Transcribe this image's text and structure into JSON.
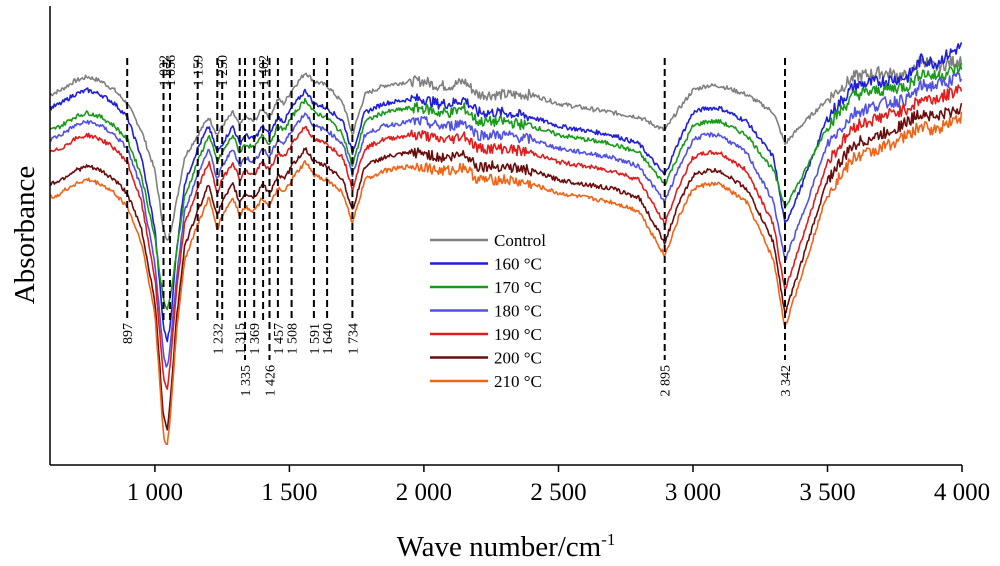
{
  "chart_data": {
    "type": "line",
    "title": "",
    "xlabel": "Wave number/cm",
    "xlabel_sup": "-1",
    "ylabel": "Absorbance",
    "xlim": [
      610,
      4000
    ],
    "ylim": [
      0,
      1
    ],
    "y_ticks_shown": false,
    "grid": false,
    "legend_position": "center",
    "x_ticks": [
      {
        "value": 1000,
        "label": "1 000"
      },
      {
        "value": 1500,
        "label": "1 500"
      },
      {
        "value": 2000,
        "label": "2 000"
      },
      {
        "value": 2500,
        "label": "2 500"
      },
      {
        "value": 3000,
        "label": "3 000"
      },
      {
        "value": 3500,
        "label": "3 500"
      },
      {
        "value": 4000,
        "label": "4 000"
      }
    ],
    "series": [
      {
        "name": "Control",
        "color": "#808080",
        "x": [
          610,
          650,
          700,
          750,
          800,
          850,
          897,
          950,
          1000,
          1032,
          1045,
          1056,
          1080,
          1110,
          1159,
          1200,
          1232,
          1250,
          1290,
          1315,
          1335,
          1369,
          1400,
          1426,
          1457,
          1480,
          1508,
          1560,
          1591,
          1640,
          1700,
          1734,
          1780,
          1850,
          1950,
          2000,
          2050,
          2100,
          2150,
          2200,
          2300,
          2400,
          2500,
          2600,
          2700,
          2800,
          2895,
          2950,
          3000,
          3050,
          3100,
          3200,
          3300,
          3342,
          3400,
          3500,
          3600,
          3700,
          3800,
          3850,
          3900,
          3950,
          4000
        ],
        "y": [
          0.82,
          0.83,
          0.85,
          0.86,
          0.85,
          0.83,
          0.8,
          0.74,
          0.65,
          0.52,
          0.49,
          0.51,
          0.58,
          0.68,
          0.73,
          0.77,
          0.73,
          0.75,
          0.78,
          0.75,
          0.77,
          0.76,
          0.79,
          0.77,
          0.81,
          0.8,
          0.83,
          0.87,
          0.85,
          0.84,
          0.8,
          0.73,
          0.82,
          0.84,
          0.85,
          0.85,
          0.84,
          0.84,
          0.85,
          0.82,
          0.82,
          0.82,
          0.8,
          0.79,
          0.78,
          0.77,
          0.74,
          0.79,
          0.83,
          0.84,
          0.84,
          0.82,
          0.78,
          0.71,
          0.75,
          0.81,
          0.86,
          0.87,
          0.86,
          0.9,
          0.88,
          0.89,
          0.9
        ]
      },
      {
        "name": "160 °C",
        "color": "#1f1fd6",
        "x": [
          610,
          650,
          700,
          750,
          800,
          850,
          897,
          950,
          1000,
          1032,
          1045,
          1056,
          1080,
          1110,
          1159,
          1200,
          1232,
          1250,
          1290,
          1315,
          1335,
          1369,
          1400,
          1426,
          1457,
          1480,
          1508,
          1560,
          1591,
          1640,
          1700,
          1734,
          1780,
          1850,
          1950,
          2000,
          2050,
          2100,
          2150,
          2200,
          2300,
          2400,
          2500,
          2600,
          2700,
          2800,
          2895,
          2950,
          3000,
          3050,
          3100,
          3200,
          3300,
          3342,
          3400,
          3500,
          3600,
          3700,
          3800,
          3850,
          3900,
          3950,
          4000
        ],
        "y": [
          0.79,
          0.8,
          0.82,
          0.83,
          0.82,
          0.8,
          0.77,
          0.68,
          0.52,
          0.3,
          0.27,
          0.3,
          0.47,
          0.62,
          0.7,
          0.75,
          0.69,
          0.71,
          0.75,
          0.71,
          0.73,
          0.72,
          0.75,
          0.73,
          0.77,
          0.76,
          0.79,
          0.83,
          0.8,
          0.79,
          0.76,
          0.69,
          0.78,
          0.8,
          0.81,
          0.81,
          0.8,
          0.8,
          0.81,
          0.78,
          0.78,
          0.77,
          0.75,
          0.74,
          0.73,
          0.71,
          0.64,
          0.72,
          0.78,
          0.79,
          0.79,
          0.76,
          0.68,
          0.53,
          0.61,
          0.77,
          0.84,
          0.85,
          0.86,
          0.9,
          0.89,
          0.91,
          0.93
        ]
      },
      {
        "name": "170 °C",
        "color": "#1a9a1a",
        "x": [
          610,
          650,
          700,
          750,
          800,
          850,
          897,
          950,
          1000,
          1032,
          1045,
          1056,
          1080,
          1110,
          1159,
          1200,
          1232,
          1250,
          1290,
          1315,
          1335,
          1369,
          1400,
          1426,
          1457,
          1480,
          1508,
          1560,
          1591,
          1640,
          1700,
          1734,
          1780,
          1850,
          1950,
          2000,
          2050,
          2100,
          2150,
          2200,
          2300,
          2400,
          2500,
          2600,
          2700,
          2800,
          2895,
          2950,
          3000,
          3050,
          3100,
          3200,
          3300,
          3342,
          3400,
          3500,
          3600,
          3700,
          3800,
          3850,
          3900,
          3950,
          4000
        ],
        "y": [
          0.74,
          0.75,
          0.77,
          0.78,
          0.77,
          0.75,
          0.72,
          0.64,
          0.5,
          0.36,
          0.34,
          0.36,
          0.47,
          0.59,
          0.67,
          0.73,
          0.67,
          0.69,
          0.73,
          0.69,
          0.71,
          0.7,
          0.73,
          0.71,
          0.75,
          0.74,
          0.77,
          0.81,
          0.78,
          0.77,
          0.73,
          0.66,
          0.76,
          0.78,
          0.79,
          0.79,
          0.78,
          0.78,
          0.79,
          0.76,
          0.76,
          0.75,
          0.73,
          0.72,
          0.71,
          0.69,
          0.62,
          0.69,
          0.75,
          0.76,
          0.76,
          0.73,
          0.65,
          0.57,
          0.63,
          0.75,
          0.82,
          0.83,
          0.84,
          0.87,
          0.86,
          0.87,
          0.88
        ]
      },
      {
        "name": "180 °C",
        "color": "#5252e0",
        "x": [
          610,
          650,
          700,
          750,
          800,
          850,
          897,
          950,
          1000,
          1032,
          1045,
          1056,
          1080,
          1110,
          1159,
          1200,
          1232,
          1250,
          1290,
          1315,
          1335,
          1369,
          1400,
          1426,
          1457,
          1480,
          1508,
          1560,
          1591,
          1640,
          1700,
          1734,
          1780,
          1850,
          1950,
          2000,
          2050,
          2100,
          2150,
          2200,
          2300,
          2400,
          2500,
          2600,
          2700,
          2800,
          2895,
          2950,
          3000,
          3050,
          3100,
          3200,
          3300,
          3342,
          3400,
          3500,
          3600,
          3700,
          3800,
          3850,
          3900,
          3950,
          4000
        ],
        "y": [
          0.72,
          0.73,
          0.75,
          0.76,
          0.75,
          0.73,
          0.7,
          0.61,
          0.44,
          0.24,
          0.21,
          0.25,
          0.41,
          0.56,
          0.64,
          0.7,
          0.63,
          0.66,
          0.7,
          0.66,
          0.68,
          0.67,
          0.7,
          0.68,
          0.72,
          0.71,
          0.74,
          0.78,
          0.75,
          0.74,
          0.71,
          0.64,
          0.73,
          0.75,
          0.76,
          0.76,
          0.75,
          0.75,
          0.76,
          0.73,
          0.73,
          0.72,
          0.7,
          0.69,
          0.68,
          0.66,
          0.58,
          0.66,
          0.72,
          0.73,
          0.73,
          0.69,
          0.58,
          0.45,
          0.54,
          0.71,
          0.78,
          0.8,
          0.81,
          0.84,
          0.84,
          0.85,
          0.86
        ]
      },
      {
        "name": "190 °C",
        "color": "#e01e1e",
        "x": [
          610,
          650,
          700,
          750,
          800,
          850,
          897,
          950,
          1000,
          1032,
          1045,
          1056,
          1080,
          1110,
          1159,
          1200,
          1232,
          1250,
          1290,
          1315,
          1335,
          1369,
          1400,
          1426,
          1457,
          1480,
          1508,
          1560,
          1591,
          1640,
          1700,
          1734,
          1780,
          1850,
          1950,
          2000,
          2050,
          2100,
          2150,
          2200,
          2300,
          2400,
          2500,
          2600,
          2700,
          2800,
          2895,
          2950,
          3000,
          3050,
          3100,
          3200,
          3300,
          3342,
          3400,
          3500,
          3600,
          3700,
          3800,
          3850,
          3900,
          3950,
          4000
        ],
        "y": [
          0.69,
          0.7,
          0.72,
          0.73,
          0.72,
          0.7,
          0.67,
          0.58,
          0.41,
          0.19,
          0.16,
          0.21,
          0.38,
          0.53,
          0.61,
          0.67,
          0.6,
          0.63,
          0.67,
          0.63,
          0.65,
          0.64,
          0.67,
          0.65,
          0.69,
          0.68,
          0.71,
          0.75,
          0.72,
          0.71,
          0.68,
          0.61,
          0.7,
          0.72,
          0.73,
          0.73,
          0.72,
          0.72,
          0.73,
          0.7,
          0.7,
          0.69,
          0.67,
          0.66,
          0.65,
          0.63,
          0.53,
          0.62,
          0.68,
          0.69,
          0.69,
          0.65,
          0.53,
          0.38,
          0.49,
          0.67,
          0.75,
          0.77,
          0.79,
          0.81,
          0.81,
          0.82,
          0.84
        ]
      },
      {
        "name": "200 °C",
        "color": "#6b0c0c",
        "x": [
          610,
          650,
          700,
          750,
          800,
          850,
          897,
          950,
          1000,
          1032,
          1045,
          1056,
          1080,
          1110,
          1159,
          1200,
          1232,
          1250,
          1290,
          1315,
          1335,
          1369,
          1400,
          1426,
          1457,
          1480,
          1508,
          1560,
          1591,
          1640,
          1700,
          1734,
          1780,
          1850,
          1950,
          2000,
          2050,
          2100,
          2150,
          2200,
          2300,
          2400,
          2500,
          2600,
          2700,
          2800,
          2895,
          2950,
          3000,
          3050,
          3100,
          3200,
          3300,
          3342,
          3400,
          3500,
          3600,
          3700,
          3800,
          3850,
          3900,
          3950,
          4000
        ],
        "y": [
          0.62,
          0.63,
          0.65,
          0.66,
          0.65,
          0.63,
          0.6,
          0.52,
          0.36,
          0.1,
          0.07,
          0.13,
          0.32,
          0.48,
          0.56,
          0.62,
          0.55,
          0.58,
          0.62,
          0.58,
          0.6,
          0.59,
          0.62,
          0.6,
          0.64,
          0.63,
          0.66,
          0.7,
          0.67,
          0.66,
          0.63,
          0.56,
          0.66,
          0.68,
          0.69,
          0.69,
          0.68,
          0.68,
          0.69,
          0.66,
          0.66,
          0.65,
          0.63,
          0.62,
          0.61,
          0.59,
          0.49,
          0.58,
          0.64,
          0.65,
          0.65,
          0.61,
          0.49,
          0.33,
          0.44,
          0.63,
          0.71,
          0.73,
          0.76,
          0.78,
          0.77,
          0.78,
          0.79
        ]
      },
      {
        "name": "210 °C",
        "color": "#f06418",
        "x": [
          610,
          650,
          700,
          750,
          800,
          850,
          897,
          950,
          1000,
          1032,
          1045,
          1056,
          1080,
          1110,
          1159,
          1200,
          1232,
          1250,
          1290,
          1315,
          1335,
          1369,
          1400,
          1426,
          1457,
          1480,
          1508,
          1560,
          1591,
          1640,
          1700,
          1734,
          1780,
          1850,
          1950,
          2000,
          2050,
          2100,
          2150,
          2200,
          2300,
          2400,
          2500,
          2600,
          2700,
          2800,
          2895,
          2950,
          3000,
          3050,
          3100,
          3200,
          3300,
          3342,
          3400,
          3500,
          3600,
          3700,
          3800,
          3850,
          3900,
          3950,
          4000
        ],
        "y": [
          0.59,
          0.6,
          0.62,
          0.63,
          0.62,
          0.6,
          0.57,
          0.49,
          0.33,
          0.06,
          0.03,
          0.09,
          0.29,
          0.45,
          0.53,
          0.59,
          0.52,
          0.55,
          0.59,
          0.55,
          0.57,
          0.56,
          0.59,
          0.57,
          0.61,
          0.6,
          0.63,
          0.67,
          0.64,
          0.63,
          0.6,
          0.53,
          0.63,
          0.65,
          0.66,
          0.66,
          0.65,
          0.65,
          0.66,
          0.63,
          0.63,
          0.62,
          0.6,
          0.59,
          0.58,
          0.56,
          0.46,
          0.55,
          0.61,
          0.62,
          0.62,
          0.58,
          0.45,
          0.3,
          0.41,
          0.6,
          0.68,
          0.7,
          0.73,
          0.75,
          0.74,
          0.76,
          0.77
        ]
      }
    ],
    "annotations": [
      {
        "value": 897,
        "label": "897",
        "label_pos": "below"
      },
      {
        "value": 1032,
        "label": "1 032",
        "label_pos": "above"
      },
      {
        "value": 1056,
        "label": "1 056",
        "label_pos": "above"
      },
      {
        "value": 1159,
        "label": "1 159",
        "label_pos": "above"
      },
      {
        "value": 1232,
        "label": "1 232",
        "label_pos": "below"
      },
      {
        "value": 1250,
        "label": "1 250",
        "label_pos": "above"
      },
      {
        "value": 1315,
        "label": "1 315",
        "label_pos": "below"
      },
      {
        "value": 1335,
        "label": "1 335",
        "label_pos": "low"
      },
      {
        "value": 1369,
        "label": "1 369",
        "label_pos": "below"
      },
      {
        "value": 1402,
        "label": "1 402",
        "label_pos": "above"
      },
      {
        "value": 1426,
        "label": "1 426",
        "label_pos": "low"
      },
      {
        "value": 1457,
        "label": "1 457",
        "label_pos": "below"
      },
      {
        "value": 1508,
        "label": "1 508",
        "label_pos": "below"
      },
      {
        "value": 1591,
        "label": "1 591",
        "label_pos": "below"
      },
      {
        "value": 1640,
        "label": "1 640",
        "label_pos": "below"
      },
      {
        "value": 1734,
        "label": "1 734",
        "label_pos": "below"
      },
      {
        "value": 2895,
        "label": "2 895",
        "label_pos": "low"
      },
      {
        "value": 3342,
        "label": "3 342",
        "label_pos": "low"
      }
    ]
  }
}
